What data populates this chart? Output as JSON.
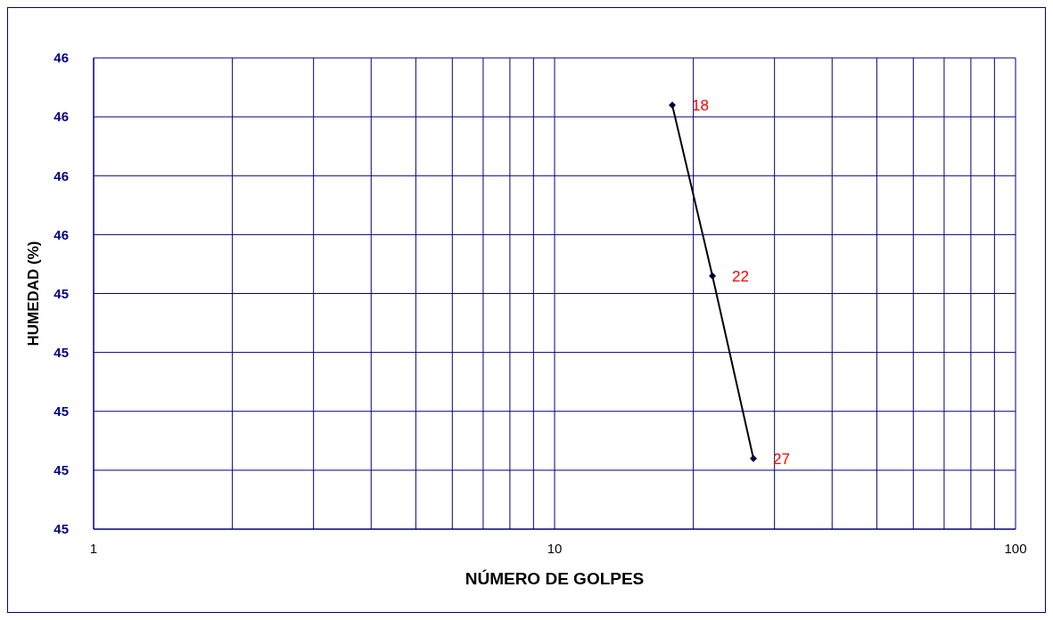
{
  "chart_data": {
    "type": "line",
    "xlabel": "NÚMERO DE GOLPES",
    "ylabel": "HUMEDAD (%)",
    "x": [
      18,
      22,
      27
    ],
    "series": [
      {
        "color": "#000000",
        "values": [
          45.72,
          45.43,
          45.12
        ]
      }
    ],
    "log": "x",
    "xlim": [
      1,
      100
    ],
    "xticks": [
      1,
      {
        "value": 2,
        "label": null
      },
      {
        "value": 3,
        "label": null
      },
      {
        "value": 4,
        "label": null
      },
      {
        "value": 5,
        "label": null
      },
      {
        "value": 6,
        "label": null
      },
      {
        "value": 7,
        "label": null
      },
      {
        "value": 8,
        "label": null
      },
      {
        "value": 9,
        "label": null
      },
      10,
      {
        "value": 20,
        "label": null
      },
      {
        "value": 30,
        "label": null
      },
      {
        "value": 40,
        "label": null
      },
      {
        "value": 50,
        "label": null
      },
      {
        "value": 60,
        "label": null
      },
      {
        "value": 70,
        "label": null
      },
      {
        "value": 80,
        "label": null
      },
      {
        "value": 90,
        "label": null
      },
      100
    ],
    "ylim": [
      45.0,
      45.8
    ],
    "yticks": [
      {
        "value": 45.0,
        "label": "45"
      },
      {
        "value": 45.1,
        "label": "45"
      },
      {
        "value": 45.2,
        "label": "45"
      },
      {
        "value": 45.3,
        "label": "45"
      },
      {
        "value": 45.4,
        "label": "45"
      },
      {
        "value": 45.5,
        "label": "46"
      },
      {
        "value": 45.6,
        "label": "46"
      },
      {
        "value": 45.7,
        "label": "46"
      },
      {
        "value": 45.8,
        "label": "46"
      }
    ],
    "grid": true,
    "marker": "diamond",
    "line_style": "solid",
    "legend": false,
    "annotations": [
      {
        "text": "18",
        "x": 18,
        "y": 45.72
      },
      {
        "text": "22",
        "x": 22,
        "y": 45.43
      },
      {
        "text": "27",
        "x": 27,
        "y": 45.12
      }
    ]
  }
}
